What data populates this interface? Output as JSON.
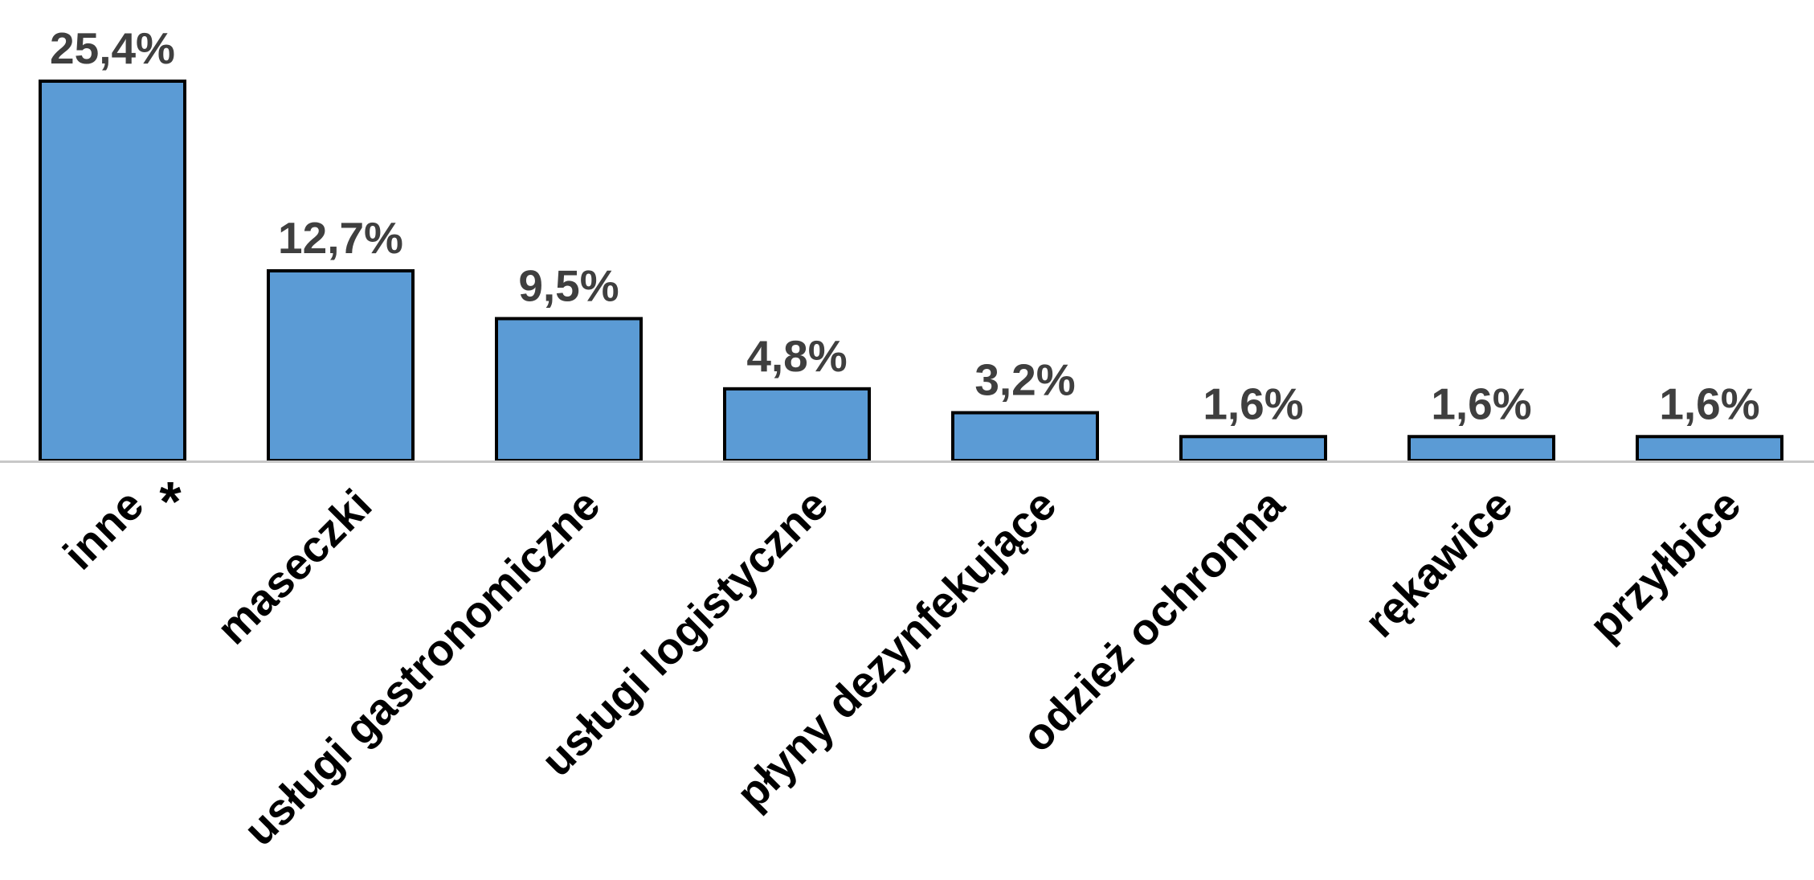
{
  "chart_data": {
    "type": "bar",
    "title": "",
    "xlabel": "",
    "ylabel": "",
    "categories": [
      "inne",
      "maseczki",
      "usługi gastronomiczne",
      "usługi logistyczne",
      "płyny dezynfekujące",
      "odzież ochronna",
      "rękawice",
      "przyłbice"
    ],
    "values": [
      25.4,
      12.7,
      9.5,
      4.8,
      3.2,
      1.6,
      1.6,
      1.6
    ],
    "value_labels": [
      "25,4%",
      "12,7%",
      "9,5%",
      "4,8%",
      "3,2%",
      "1,6%",
      "1,6%",
      "1,6%"
    ],
    "annotations": [
      {
        "category": "inne",
        "text": "*"
      }
    ],
    "unit": "%",
    "ylim": [
      0,
      25.4
    ],
    "grid": false,
    "legend": "none",
    "colors": {
      "bar_fill": "#5b9bd5",
      "bar_stroke": "#000000",
      "value_label": "#3f3f3f",
      "category_label": "#000000",
      "axis_line": "#c8c8c8"
    }
  }
}
